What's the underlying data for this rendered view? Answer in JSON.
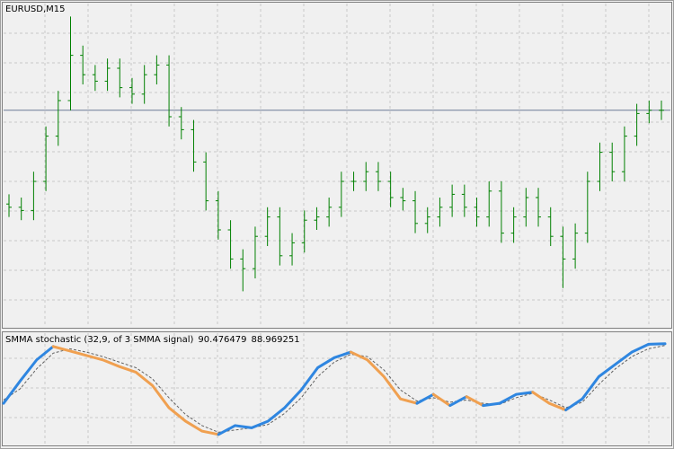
{
  "chart_data": [
    {
      "type": "ohlc",
      "title": "EURUSD,M15",
      "color": "#008000",
      "grid": true,
      "ylim": [
        0,
        100
      ],
      "price_line": 67,
      "price_line_color": "#6c7a96",
      "open": [
        38,
        37,
        36,
        45,
        59,
        70,
        84,
        78,
        76,
        80,
        74,
        72,
        78,
        81,
        65,
        61,
        51,
        39,
        30,
        21,
        18,
        28,
        34,
        22,
        26,
        33,
        34,
        37,
        45,
        45,
        48,
        45,
        40,
        39,
        32,
        34,
        37,
        41,
        37,
        34,
        42,
        29,
        34,
        40,
        34,
        28,
        21,
        29,
        45,
        54,
        48,
        59,
        66,
        67
      ],
      "high": [
        41,
        40,
        48,
        62,
        73,
        96,
        87,
        81,
        83,
        83,
        77,
        81,
        84,
        84,
        68,
        64,
        54,
        42,
        33,
        24,
        31,
        37,
        37,
        29,
        36,
        37,
        40,
        48,
        48,
        51,
        51,
        48,
        43,
        42,
        37,
        40,
        44,
        44,
        40,
        45,
        45,
        37,
        43,
        43,
        37,
        31,
        32,
        48,
        57,
        57,
        62,
        69,
        70,
        70
      ],
      "low": [
        34,
        33,
        33,
        42,
        56,
        67,
        75,
        73,
        73,
        71,
        69,
        69,
        75,
        62,
        58,
        48,
        36,
        27,
        18,
        11,
        15,
        25,
        19,
        19,
        23,
        30,
        31,
        34,
        42,
        42,
        42,
        37,
        36,
        29,
        29,
        31,
        34,
        34,
        31,
        31,
        26,
        26,
        31,
        31,
        25,
        12,
        18,
        26,
        42,
        45,
        45,
        56,
        63,
        64
      ],
      "close": [
        37,
        36,
        45,
        59,
        70,
        84,
        78,
        76,
        80,
        74,
        72,
        78,
        81,
        65,
        61,
        51,
        39,
        30,
        21,
        18,
        28,
        34,
        22,
        26,
        33,
        34,
        37,
        45,
        45,
        48,
        45,
        40,
        39,
        32,
        34,
        37,
        41,
        37,
        34,
        42,
        29,
        34,
        40,
        34,
        28,
        21,
        29,
        45,
        54,
        48,
        59,
        66,
        67,
        67
      ]
    },
    {
      "type": "stochastic",
      "title": "SMMA stochastic (32,9, of 3 SMMA signal)",
      "grid": true,
      "ylim": [
        0,
        100
      ],
      "up_color": "#2f86e0",
      "down_color": "#f0a050",
      "series": [
        {
          "name": "main",
          "values": [
            37,
            57,
            76,
            88,
            84,
            80,
            76,
            70,
            65,
            53,
            33,
            21,
            12,
            9,
            17,
            15,
            21,
            33,
            49,
            69,
            78,
            83,
            76,
            61,
            41,
            37,
            45,
            35,
            43,
            35,
            37,
            45,
            47,
            37,
            31,
            41,
            61,
            72,
            83,
            90,
            90.476479
          ]
        },
        {
          "name": "signal",
          "color": "#606060",
          "values": [
            40,
            50,
            68,
            82,
            86,
            83,
            79,
            74,
            69,
            59,
            42,
            27,
            17,
            11,
            13,
            15,
            18,
            28,
            42,
            61,
            74,
            81,
            79,
            67,
            49,
            39,
            42,
            38,
            40,
            37,
            36,
            42,
            46,
            40,
            33,
            38,
            54,
            68,
            79,
            86,
            88.969251
          ]
        }
      ]
    }
  ]
}
